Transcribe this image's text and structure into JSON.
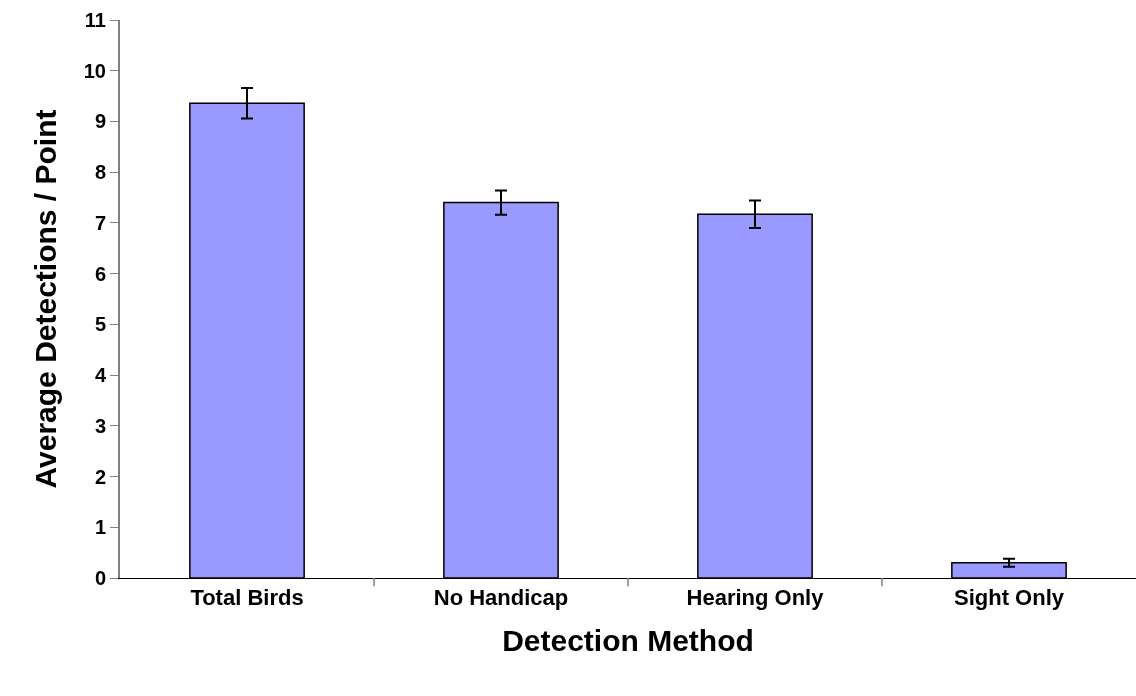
{
  "chart_data": {
    "type": "bar",
    "xlabel": "Detection Method",
    "ylabel": "Average Detections / Point",
    "categories": [
      "Total Birds",
      "No Handicap",
      "Hearing Only",
      "Sight Only"
    ],
    "values": [
      9.36,
      7.4,
      7.17,
      0.3
    ],
    "errors": [
      0.3,
      0.24,
      0.27,
      0.08
    ],
    "color": "#9999ff",
    "ylim": [
      0,
      11
    ],
    "yticks": [
      0,
      1,
      2,
      3,
      4,
      5,
      6,
      7,
      8,
      9,
      10,
      11
    ],
    "grid": false
  }
}
